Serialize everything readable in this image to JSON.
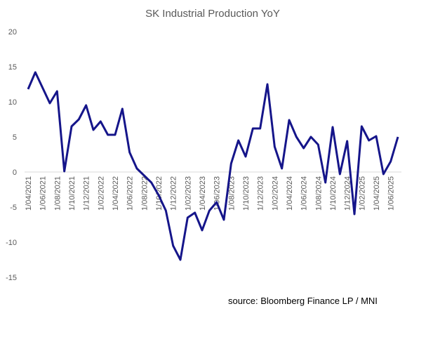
{
  "chart_data": {
    "type": "line",
    "title": "SK Industrial Production YoY",
    "annotation": "source: Bloomberg Finance LP /  MNI",
    "categories": [
      "1/04/2021",
      null,
      "1/06/2021",
      null,
      "1/08/2021",
      null,
      "1/10/2021",
      null,
      "1/12/2021",
      null,
      "1/02/2022",
      null,
      "1/04/2022",
      null,
      "1/06/2022",
      null,
      "1/08/2022",
      null,
      "1/10/2022",
      null,
      "1/12/2022",
      null,
      "1/02/2023",
      null,
      "1/04/2023",
      null,
      "1/06/2023",
      null,
      "1/08/2023",
      null,
      "1/10/2023",
      null,
      "1/12/2023",
      null,
      "1/02/2024",
      null,
      "1/04/2024",
      null,
      "1/06/2024",
      null,
      "1/08/2024",
      null,
      "1/10/2024",
      null,
      "1/12/2024",
      null,
      "1/02/2025",
      null,
      "1/04/2025",
      null,
      "1/06/2025",
      null
    ],
    "series": [
      {
        "color": "#15158a",
        "values": [
          11.8,
          14.2,
          12,
          9.8,
          11.5,
          0.1,
          6.5,
          7.5,
          9.5,
          6,
          7.2,
          5.3,
          5.3,
          9,
          2.8,
          0.5,
          -0.5,
          -1.5,
          -3.3,
          -5.5,
          -10.5,
          -12.5,
          -6.5,
          -5.8,
          -8.3,
          -5.5,
          -4.3,
          -6.8,
          1.2,
          4.5,
          2.2,
          6.2,
          6.2,
          12.5,
          3.6,
          0.5,
          7.4,
          5,
          3.4,
          5,
          3.9,
          -1.5,
          6.4,
          -0.3,
          4.4,
          -6,
          6.5,
          4.5,
          5.1,
          -0.3,
          1.5,
          5
        ]
      }
    ],
    "ylim": [
      -15,
      20
    ],
    "yticks": [
      -15,
      -10,
      -5,
      0,
      5,
      10,
      15,
      20
    ],
    "grid": false
  }
}
